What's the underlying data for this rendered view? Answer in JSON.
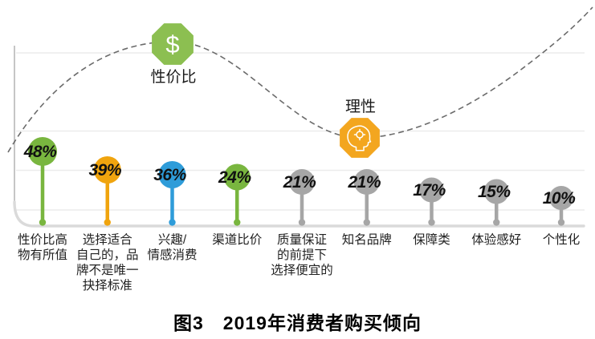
{
  "chart_data": {
    "type": "bar",
    "style": "lollipop-infographic",
    "title": "图3　2019年消费者购买倾向",
    "categories": [
      "性价比高\n物有所值",
      "选择适合\n自己的，品\n牌不是唯一\n抉择标准",
      "兴趣/\n情感消费",
      "渠道比价",
      "质量保证\n的前提下\n选择便宜的",
      "知名品牌",
      "保障类",
      "体验感好",
      "个性化"
    ],
    "values": [
      48,
      39,
      36,
      24,
      21,
      21,
      17,
      15,
      10
    ],
    "value_labels": [
      "48%",
      "39%",
      "36%",
      "24%",
      "21%",
      "21%",
      "17%",
      "15%",
      "10%"
    ],
    "series_colors": [
      "#79b63f",
      "#f0a40e",
      "#2e9cd9",
      "#79b63f",
      "#a6a6a6",
      "#a6a6a6",
      "#a6a6a6",
      "#a6a6a6",
      "#a6a6a6"
    ],
    "xlabel": "",
    "ylabel": "",
    "ylim": [
      0,
      50
    ],
    "grid": true,
    "legend": false,
    "trend": "dashed-wave-curve",
    "annotations": [
      {
        "label": "性价比",
        "icon": "dollar-sign-octagon-icon",
        "icon_glyph": "$",
        "color": "#8cbf51",
        "position": "curve-peak"
      },
      {
        "label": "理性",
        "icon": "head-gear-octagon-icon",
        "color": "#f3a61f",
        "position": "curve-trough"
      }
    ]
  }
}
